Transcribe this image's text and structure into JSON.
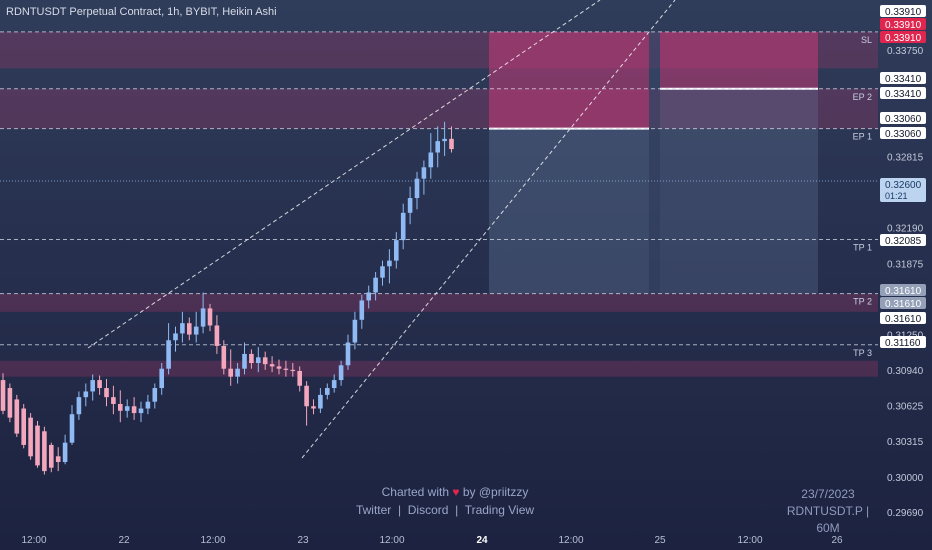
{
  "title": "RDNTUSDT Perpetual Contract, 1h, BYBIT, Heikin Ashi",
  "watermark": {
    "line1": "Charted with",
    "heart": "♥",
    "line1b": "by @priitzzy",
    "links": [
      "Twitter",
      "|",
      "Discord",
      "|",
      "Trading View"
    ]
  },
  "info": {
    "date": "23/7/2023",
    "symbol": "RDNTUSDT.P | 60M"
  },
  "colors": {
    "background_top": "#2d3b58",
    "background_bottom": "#1c2240",
    "bull": "#8fbaf3",
    "bear": "#f4a6bd",
    "zone": "#b2386b",
    "sl_red": "#e0264e",
    "label_bg": "#ffffff",
    "label_blue": "#bcd4f0"
  },
  "chart_data": {
    "type": "candlestick",
    "style": "Heikin Ashi",
    "ylim": [
      0.2955,
      0.3412
    ],
    "y_ticks": [
      "0.33750",
      "0.32815",
      "0.32190",
      "0.31875",
      "0.31250",
      "0.30940",
      "0.30625",
      "0.30315",
      "0.30000",
      "0.29690"
    ],
    "x_ticks": [
      "12:00",
      "22",
      "12:00",
      "23",
      "12:00",
      "24",
      "12:00",
      "25",
      "12:00",
      "26"
    ],
    "price_labels": [
      {
        "value": "0.33910",
        "style": "white"
      },
      {
        "value": "0.33910",
        "style": "red"
      },
      {
        "value": "0.33910",
        "style": "red"
      },
      {
        "value": "0.33410",
        "style": "white"
      },
      {
        "value": "0.33410",
        "style": "white"
      },
      {
        "value": "0.33060",
        "style": "white"
      },
      {
        "value": "0.33060",
        "style": "white"
      },
      {
        "value": "0.32600",
        "style": "blue",
        "sub": "01:21"
      },
      {
        "value": "0.32085",
        "style": "white"
      },
      {
        "value": "0.31610",
        "style": "gray"
      },
      {
        "value": "0.31610",
        "style": "gray"
      },
      {
        "value": "0.31610",
        "style": "white"
      },
      {
        "value": "0.31160",
        "style": "white"
      }
    ],
    "levels": [
      {
        "name": "SL",
        "value": 0.3391
      },
      {
        "name": "EP 2",
        "value": 0.3341
      },
      {
        "name": "EP 1",
        "value": 0.3306
      },
      {
        "name": "TP 1",
        "value": 0.32085
      },
      {
        "name": "TP 2",
        "value": 0.3161
      },
      {
        "name": "TP 3",
        "value": 0.3116
      }
    ],
    "zones": [
      [
        0.3359,
        0.3391
      ],
      [
        0.3306,
        0.3341
      ],
      [
        0.3145,
        0.3161
      ],
      [
        0.3088,
        0.3102
      ]
    ],
    "candles": [
      [
        0.3085,
        0.3091,
        0.3055,
        0.3058
      ],
      [
        0.3078,
        0.3082,
        0.3048,
        0.3052
      ],
      [
        0.3068,
        0.3072,
        0.3035,
        0.3038
      ],
      [
        0.306,
        0.3064,
        0.3025,
        0.3028
      ],
      [
        0.3052,
        0.3056,
        0.3015,
        0.3018
      ],
      [
        0.3045,
        0.3049,
        0.3008,
        0.301
      ],
      [
        0.304,
        0.3044,
        0.3002,
        0.3005
      ],
      [
        0.3028,
        0.303,
        0.3004,
        0.3008
      ],
      [
        0.3018,
        0.3026,
        0.3005,
        0.3013
      ],
      [
        0.3013,
        0.3037,
        0.3011,
        0.303
      ],
      [
        0.303,
        0.3063,
        0.3028,
        0.3055
      ],
      [
        0.3055,
        0.3075,
        0.305,
        0.307
      ],
      [
        0.307,
        0.3082,
        0.3062,
        0.3075
      ],
      [
        0.3075,
        0.309,
        0.3067,
        0.3085
      ],
      [
        0.3085,
        0.3089,
        0.3072,
        0.3078
      ],
      [
        0.3078,
        0.3086,
        0.3062,
        0.307
      ],
      [
        0.307,
        0.308,
        0.3055,
        0.3064
      ],
      [
        0.3064,
        0.3076,
        0.3048,
        0.3058
      ],
      [
        0.3058,
        0.3068,
        0.3052,
        0.3062
      ],
      [
        0.3062,
        0.307,
        0.305,
        0.3056
      ],
      [
        0.3056,
        0.3066,
        0.3048,
        0.306
      ],
      [
        0.306,
        0.3072,
        0.3055,
        0.3066
      ],
      [
        0.3066,
        0.3082,
        0.306,
        0.3078
      ],
      [
        0.3078,
        0.31,
        0.3072,
        0.3095
      ],
      [
        0.3095,
        0.3135,
        0.309,
        0.312
      ],
      [
        0.312,
        0.3132,
        0.311,
        0.3126
      ],
      [
        0.3126,
        0.3145,
        0.3118,
        0.3135
      ],
      [
        0.3135,
        0.314,
        0.312,
        0.3125
      ],
      [
        0.3125,
        0.3145,
        0.3118,
        0.3132
      ],
      [
        0.3132,
        0.3162,
        0.3126,
        0.3148
      ],
      [
        0.3148,
        0.3152,
        0.3128,
        0.3133
      ],
      [
        0.3133,
        0.3142,
        0.3108,
        0.3115
      ],
      [
        0.3115,
        0.312,
        0.309,
        0.3095
      ],
      [
        0.3095,
        0.3112,
        0.308,
        0.3088
      ],
      [
        0.3088,
        0.31,
        0.3082,
        0.3095
      ],
      [
        0.3095,
        0.3118,
        0.309,
        0.3108
      ],
      [
        0.3108,
        0.3112,
        0.3095,
        0.31
      ],
      [
        0.31,
        0.3114,
        0.3092,
        0.3105
      ],
      [
        0.3105,
        0.311,
        0.3094,
        0.3099
      ],
      [
        0.3099,
        0.3106,
        0.3092,
        0.3097
      ],
      [
        0.3097,
        0.3103,
        0.309,
        0.3095
      ],
      [
        0.3095,
        0.3102,
        0.3088,
        0.3094
      ],
      [
        0.3094,
        0.31,
        0.3088,
        0.3093
      ],
      [
        0.3093,
        0.3097,
        0.3075,
        0.308
      ],
      [
        0.308,
        0.3084,
        0.3045,
        0.3062
      ],
      [
        0.3062,
        0.3068,
        0.3055,
        0.306
      ],
      [
        0.306,
        0.3078,
        0.3056,
        0.3072
      ],
      [
        0.3072,
        0.3082,
        0.3068,
        0.3078
      ],
      [
        0.3078,
        0.309,
        0.3074,
        0.3085
      ],
      [
        0.3085,
        0.3102,
        0.308,
        0.3098
      ],
      [
        0.3098,
        0.3125,
        0.3094,
        0.3118
      ],
      [
        0.3118,
        0.3145,
        0.3112,
        0.3138
      ],
      [
        0.3138,
        0.316,
        0.313,
        0.3155
      ],
      [
        0.3155,
        0.3168,
        0.3148,
        0.3162
      ],
      [
        0.3162,
        0.318,
        0.3155,
        0.3175
      ],
      [
        0.3175,
        0.319,
        0.3168,
        0.3185
      ],
      [
        0.3185,
        0.32,
        0.317,
        0.319
      ],
      [
        0.319,
        0.3215,
        0.3183,
        0.3208
      ],
      [
        0.3208,
        0.324,
        0.32,
        0.3232
      ],
      [
        0.3232,
        0.3255,
        0.3222,
        0.3245
      ],
      [
        0.3245,
        0.3268,
        0.3235,
        0.3262
      ],
      [
        0.3262,
        0.3278,
        0.3248,
        0.3272
      ],
      [
        0.3272,
        0.3302,
        0.3262,
        0.3285
      ],
      [
        0.3285,
        0.3308,
        0.3272,
        0.3295
      ],
      [
        0.3295,
        0.3312,
        0.3282,
        0.3297
      ],
      [
        0.3297,
        0.3308,
        0.3285,
        0.3288
      ]
    ]
  }
}
